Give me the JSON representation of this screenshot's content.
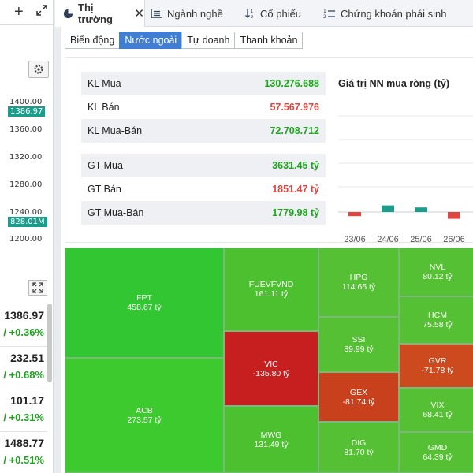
{
  "left_panel": {
    "price_ticks": [
      "1400.00",
      "1360.00",
      "1320.00",
      "1280.00",
      "1240.00",
      "1200.00"
    ],
    "price_tag": "1386.97",
    "volume_tag": "828.01M",
    "indices": [
      {
        "value": "1386.97",
        "change": "/ +0.36%"
      },
      {
        "value": "232.51",
        "change": "/ +0.68%"
      },
      {
        "value": "101.17",
        "change": "/ +0.31%"
      },
      {
        "value": "1488.77",
        "change": "/ +0.51%"
      }
    ]
  },
  "tabs": [
    {
      "label": "Thị trường",
      "icon": "pie-chart-icon",
      "active": true
    },
    {
      "label": "Ngành nghề",
      "icon": "list-icon"
    },
    {
      "label": "Cổ phiếu",
      "icon": "sort-icon"
    },
    {
      "label": "Chứng khoán phái sinh",
      "icon": "numbered-list-icon"
    }
  ],
  "subtabs": [
    "Biến động",
    "Nước ngoài",
    "Tự doanh",
    "Thanh khoản"
  ],
  "stats": [
    {
      "label": "KL Mua",
      "value": "130.276.688",
      "color": "green"
    },
    {
      "label": "KL Bán",
      "value": "57.567.976",
      "color": "red"
    },
    {
      "label": "KL Mua-Bán",
      "value": "72.708.712",
      "color": "green"
    },
    {
      "label": "GT Mua",
      "value": "3631.45 tỷ",
      "color": "green"
    },
    {
      "label": "GT Bán",
      "value": "1851.47 tỷ",
      "color": "red"
    },
    {
      "label": "GT Mua-Bán",
      "value": "1779.98 tỷ",
      "color": "green"
    }
  ],
  "chart_title": "Giá trị NN mua ròng (tỷ)",
  "chart_data": {
    "type": "bar",
    "title": "Giá trị NN mua ròng (tỷ)",
    "categories": [
      "23/06",
      "24/06",
      "25/06",
      "26/06"
    ],
    "values": [
      -260,
      420,
      290,
      -430
    ],
    "colors": {
      "positive": "#1a9e8b",
      "negative": "#e0463f"
    },
    "grid": true
  },
  "treemap": [
    {
      "ticker": "FPT",
      "value": "458.67 tỷ",
      "color": "#33c633"
    },
    {
      "ticker": "ACB",
      "value": "273.57 tỷ",
      "color": "#3dca2e"
    },
    {
      "ticker": "FUEVFVND",
      "value": "161.11 tỷ",
      "color": "#4cc02f"
    },
    {
      "ticker": "VIC",
      "value": "-135.80 tỷ",
      "color": "#c71f1f"
    },
    {
      "ticker": "MWG",
      "value": "131.49 tỷ",
      "color": "#4cc02f"
    },
    {
      "ticker": "HPG",
      "value": "114.65 tỷ",
      "color": "#55c033"
    },
    {
      "ticker": "SSI",
      "value": "89.99 tỷ",
      "color": "#55c033"
    },
    {
      "ticker": "GEX",
      "value": "-81.74 tỷ",
      "color": "#c9411c"
    },
    {
      "ticker": "DIG",
      "value": "81.70 tỷ",
      "color": "#55c033"
    },
    {
      "ticker": "NVL",
      "value": "80.12 tỷ",
      "color": "#55c033"
    },
    {
      "ticker": "HCM",
      "value": "75.58 tỷ",
      "color": "#55c033"
    },
    {
      "ticker": "GVR",
      "value": "-71.78 tỷ",
      "color": "#cc4a1d"
    },
    {
      "ticker": "VIX",
      "value": "68.41 tỷ",
      "color": "#55c033"
    },
    {
      "ticker": "GMD",
      "value": "64.39 tỷ",
      "color": "#55c033"
    }
  ]
}
